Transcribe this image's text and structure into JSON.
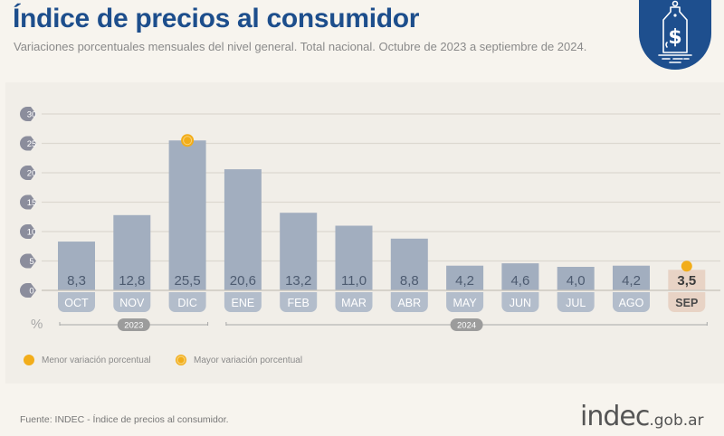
{
  "header": {
    "title": "Índice de precios al consumidor",
    "subtitle": "Variaciones porcentuales mensuales del nivel general. Total nacional. Octubre de 2023 a septiembre de 2024.",
    "badge_icon": "price-tag-dollar-icon"
  },
  "colors": {
    "title": "#1d4e8c",
    "bar": "#a2aebf",
    "bar_label": "#4d5b70",
    "highlight_bar": "#e8d3c5",
    "marker": "#f2ad1a",
    "axis_badge": "#8b8d9c"
  },
  "chart_data": {
    "type": "bar",
    "title": "Índice de precios al consumidor",
    "subtitle": "Variaciones porcentuales mensuales del nivel general. Total nacional. Octubre de 2023 a septiembre de 2024.",
    "xlabel": "",
    "ylabel": "%",
    "ylim": [
      0,
      30
    ],
    "yticks": [
      0,
      5,
      10,
      15,
      20,
      25,
      30
    ],
    "grid": true,
    "categories": [
      "OCT",
      "NOV",
      "DIC",
      "ENE",
      "FEB",
      "MAR",
      "ABR",
      "MAY",
      "JUN",
      "JUL",
      "AGO",
      "SEP"
    ],
    "values": [
      8.3,
      12.8,
      25.5,
      20.6,
      13.2,
      11.0,
      8.8,
      4.2,
      4.6,
      4.0,
      4.2,
      3.5
    ],
    "value_labels": [
      "8,3",
      "12,8",
      "25,5",
      "20,6",
      "13,2",
      "11,0",
      "8,8",
      "4,2",
      "4,6",
      "4,0",
      "4,2",
      "3,5"
    ],
    "year_groups": [
      {
        "label": "2023",
        "from": 0,
        "to": 2
      },
      {
        "label": "2024",
        "from": 3,
        "to": 11
      }
    ],
    "highlighted_index": 11,
    "max_marker_index": 2,
    "min_marker_index": 11,
    "legend": [
      {
        "label": "Menor variación porcentual",
        "marker": "filled-dot"
      },
      {
        "label": "Mayor variación porcentual",
        "marker": "ringed-dot"
      }
    ],
    "legend_position": "bottom-left"
  },
  "footer": {
    "source": "Fuente: INDEC - Índice de precios al consumidor.",
    "logo_main": "indec",
    "logo_domain": ".gob.ar"
  }
}
